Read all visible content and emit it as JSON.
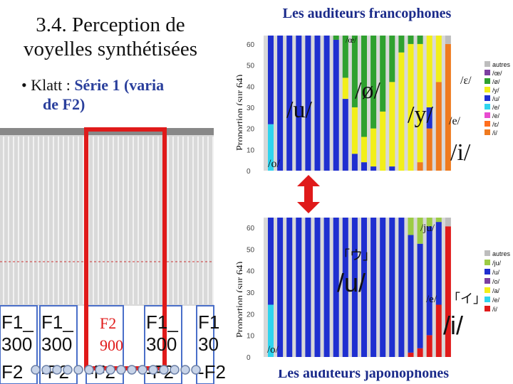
{
  "slide": {
    "title": "3.4. Perception de voyelles synthétisées",
    "bullet_prefix": "Klatt :",
    "bullet_highlight": "Série 1 (varia",
    "bullet_line2": "de F2)"
  },
  "spectrogram": {
    "labels_row1": [
      "F1_",
      "F1_",
      "",
      "F1_",
      "F1"
    ],
    "labels_row2": [
      "300",
      "300",
      "",
      "300",
      "30"
    ],
    "labels_row3": [
      "F2",
      "-F2",
      "-F2",
      "-F2",
      "-F2"
    ],
    "highlight_f2": "F2",
    "highlight_val": "900"
  },
  "top_panel": {
    "title": "Les auditeurs francophones",
    "ylabel": "Proportion (sur 64)",
    "yticks": [
      "60",
      "50",
      "40",
      "30",
      "20",
      "10",
      "0"
    ],
    "annotations": [
      "/u/",
      "/ø/",
      "/y/",
      "/i/",
      "/o/",
      "/œ/",
      "/ɛ/",
      "/e/"
    ],
    "legend": [
      "autres",
      "/œ/",
      "/ø/",
      "/y/",
      "/u/",
      "/e/",
      "/e/",
      "/ɛ/",
      "/i/"
    ]
  },
  "bottom_panel": {
    "title": "Les auditeurs japonophones",
    "ylabel": "Proportion (sur 64)",
    "yticks": [
      "60",
      "50",
      "40",
      "30",
      "20",
      "10",
      "0"
    ],
    "annotations": [
      "/ju/",
      "「ウ」",
      "/u/",
      "/e/",
      "「イ」",
      "/i/",
      "/o/"
    ],
    "legend": [
      "autres",
      "/ju/",
      "/u/",
      "/o/",
      "/a/",
      "/e/",
      "/i/"
    ]
  },
  "colors": {
    "blue": "#1f2fd0",
    "green": "#2fa12f",
    "yellow": "#f2ef1a",
    "orange": "#ef7a1f",
    "gray": "#bdbdbd",
    "cyan": "#2fd4ee",
    "red": "#e01a1a",
    "lightgreen": "#9ccc45",
    "title_blue": "#1a2a8a"
  }
}
